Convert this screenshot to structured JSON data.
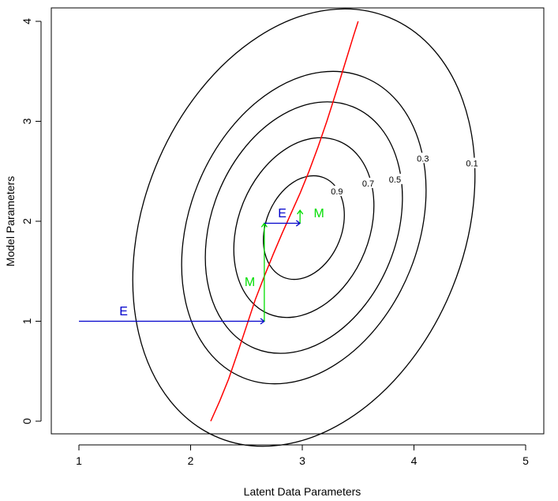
{
  "chart_data": {
    "type": "line",
    "title": "",
    "xlabel": "Latent Data Parameters",
    "ylabel": "Model Parameters",
    "xlim": [
      1,
      5
    ],
    "ylim": [
      0,
      4
    ],
    "x_ticks": [
      "1",
      "2",
      "3",
      "4",
      "5"
    ],
    "y_ticks": [
      "0",
      "1",
      "2",
      "3",
      "4"
    ],
    "contours": {
      "center": [
        3.0,
        2.0
      ],
      "levels": [
        {
          "label": "0.9",
          "label_pos": [
            3.31,
            2.3
          ]
        },
        {
          "label": "0.7",
          "label_pos": [
            3.59,
            2.38
          ]
        },
        {
          "label": "0.5",
          "label_pos": [
            3.83,
            2.42
          ]
        },
        {
          "label": "0.3",
          "label_pos": [
            4.08,
            2.63
          ]
        },
        {
          "label": "0.1",
          "label_pos": [
            4.52,
            2.58
          ]
        }
      ]
    },
    "series": [
      {
        "color": "#ff0000",
        "x": [
          2.18,
          2.26,
          2.34,
          2.42,
          2.5,
          2.58,
          2.66,
          2.74,
          2.82,
          2.9,
          2.98,
          3.06,
          3.14,
          3.22,
          3.3,
          3.38,
          3.46,
          3.5
        ],
        "y": [
          0.0,
          0.2,
          0.42,
          0.68,
          0.95,
          1.22,
          1.45,
          1.67,
          1.88,
          2.08,
          2.28,
          2.5,
          2.74,
          3.0,
          3.28,
          3.57,
          3.86,
          4.0
        ]
      }
    ],
    "steps": [
      {
        "kind": "E",
        "color": "#0000cc",
        "from": [
          1.0,
          1.0
        ],
        "to": [
          2.66,
          1.0
        ],
        "label": "E",
        "label_pos": [
          1.4,
          1.06
        ]
      },
      {
        "kind": "M",
        "color": "#00dd00",
        "from": [
          2.66,
          1.0
        ],
        "to": [
          2.66,
          1.98
        ],
        "label": "M",
        "label_pos": [
          2.53,
          1.35
        ]
      },
      {
        "kind": "E",
        "color": "#0000cc",
        "from": [
          2.66,
          1.98
        ],
        "to": [
          2.98,
          1.98
        ],
        "label": "E",
        "label_pos": [
          2.82,
          2.04
        ]
      },
      {
        "kind": "M",
        "color": "#00dd00",
        "from": [
          2.98,
          1.98
        ],
        "to": [
          2.98,
          2.11
        ],
        "label": "M",
        "label_pos": [
          3.15,
          2.04
        ]
      }
    ]
  }
}
